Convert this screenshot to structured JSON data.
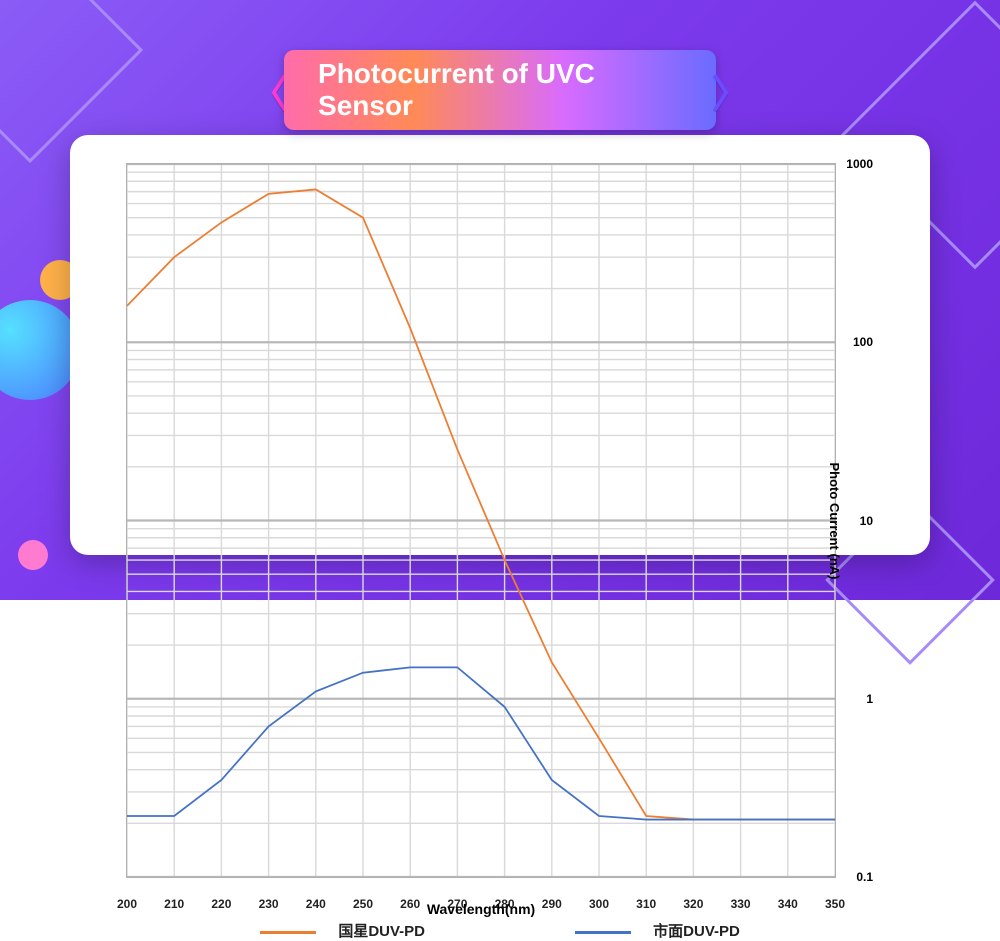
{
  "title": "Photocurrent of UVC Sensor",
  "background": {
    "gradient_from": "#8b5cf6",
    "gradient_to": "#6d28d9",
    "title_gradient": [
      "#ff6cab",
      "#ff8a56",
      "#d86bff",
      "#6b6bff"
    ],
    "chevron_left_color": "#ff3bd4",
    "chevron_right_color": "#6b4dff"
  },
  "chart": {
    "type": "line",
    "xlabel": "Wavelength(nm)",
    "ylabel": "Photo Current (nA)",
    "xlim": [
      200,
      350
    ],
    "xtick_step": 10,
    "xticks": [
      200,
      210,
      220,
      230,
      240,
      250,
      260,
      270,
      280,
      290,
      300,
      310,
      320,
      330,
      340,
      350
    ],
    "yscale": "log",
    "ylim": [
      0.1,
      1000
    ],
    "ymajor": [
      0.1,
      1,
      10,
      100,
      1000
    ],
    "yminor_multipliers": [
      2,
      3,
      4,
      5,
      6,
      7,
      8,
      9
    ],
    "plot_background": "#ffffff",
    "grid_color": "#d9d9d9",
    "grid_major_color": "#b8b8b8",
    "border_color": "#b0b0b0",
    "title_fontsize": 28,
    "axis_label_fontsize": 14,
    "tick_fontsize": 12,
    "line_width": 2.5,
    "series": [
      {
        "name": "国星DUV-PD",
        "color": "#ed7d31",
        "x": [
          200,
          210,
          220,
          230,
          240,
          250,
          260,
          270,
          280,
          290,
          300,
          310,
          320,
          330,
          340,
          350
        ],
        "y": [
          160,
          300,
          470,
          680,
          720,
          500,
          120,
          25,
          6,
          1.6,
          0.6,
          0.22,
          0.21,
          0.21,
          0.21,
          0.21
        ]
      },
      {
        "name": "市面DUV-PD",
        "color": "#4472c4",
        "x": [
          200,
          210,
          220,
          230,
          240,
          250,
          260,
          270,
          280,
          290,
          300,
          310,
          320,
          330,
          340,
          350
        ],
        "y": [
          0.22,
          0.22,
          0.35,
          0.7,
          1.1,
          1.4,
          1.5,
          1.5,
          0.9,
          0.35,
          0.22,
          0.21,
          0.21,
          0.21,
          0.21,
          0.21
        ]
      }
    ]
  },
  "legend": {
    "items": [
      {
        "label": "国星DUV-PD",
        "color": "#ed7d31"
      },
      {
        "label": "市面DUV-PD",
        "color": "#4472c4"
      }
    ]
  }
}
